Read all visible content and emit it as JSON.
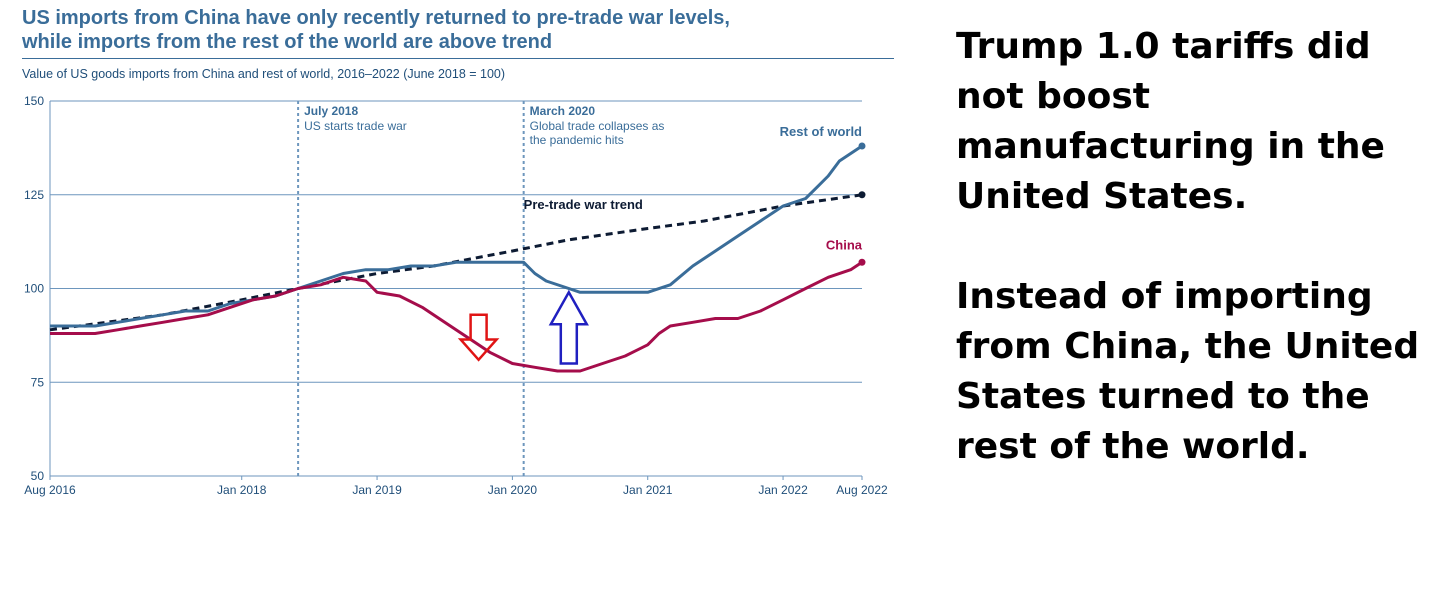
{
  "header": {
    "title_line1": "US imports from China have only recently returned to pre-trade war levels,",
    "title_line2": "while imports from the rest of the world are above trend",
    "subtitle": "Value of US goods imports from China and rest of world, 2016–2022 (June 2018 = 100)"
  },
  "side_text": {
    "para1": "Trump 1.0 tariffs did not boost manufacturing in the United States.",
    "para2": "Instead of importing from China, the United States turned to the rest of the world."
  },
  "colors": {
    "rest_of_world": "#3a6d99",
    "china": "#a50d4b",
    "trend": "#0d1b33",
    "grid": "#6d96bd",
    "axis_text": "#1f4e79",
    "arrow_down": "#e01414",
    "arrow_up": "#2020c0"
  },
  "chart_data": {
    "type": "line",
    "title": "US imports from China have only recently returned to pre-trade war levels, while imports from the rest of the world are above trend",
    "subtitle": "Value of US goods imports from China and rest of world, 2016–2022 (June 2018 = 100)",
    "xlabel": "",
    "ylabel": "",
    "x_range": [
      "2016-08",
      "2022-08"
    ],
    "ylim": [
      50,
      150
    ],
    "y_ticks": [
      50,
      75,
      100,
      125,
      150
    ],
    "x_ticks": [
      "Aug 2016",
      "Jan 2018",
      "Jan 2019",
      "Jan 2020",
      "Jan 2021",
      "Jan 2022",
      "Aug 2022"
    ],
    "grid": "horizontal",
    "series": [
      {
        "name": "Rest of world",
        "style": "solid",
        "points": [
          [
            "2016-08",
            90
          ],
          [
            "2016-10",
            90
          ],
          [
            "2016-12",
            90
          ],
          [
            "2017-02",
            91
          ],
          [
            "2017-04",
            92
          ],
          [
            "2017-06",
            93
          ],
          [
            "2017-08",
            94
          ],
          [
            "2017-10",
            94
          ],
          [
            "2017-12",
            96
          ],
          [
            "2018-02",
            97
          ],
          [
            "2018-04",
            98
          ],
          [
            "2018-06",
            100
          ],
          [
            "2018-08",
            102
          ],
          [
            "2018-10",
            104
          ],
          [
            "2018-12",
            105
          ],
          [
            "2019-02",
            105
          ],
          [
            "2019-04",
            106
          ],
          [
            "2019-06",
            106
          ],
          [
            "2019-08",
            107
          ],
          [
            "2019-10",
            107
          ],
          [
            "2019-12",
            107
          ],
          [
            "2020-02",
            107
          ],
          [
            "2020-03",
            104
          ],
          [
            "2020-04",
            102
          ],
          [
            "2020-06",
            100
          ],
          [
            "2020-07",
            99
          ],
          [
            "2020-09",
            99
          ],
          [
            "2020-11",
            99
          ],
          [
            "2021-01",
            99
          ],
          [
            "2021-03",
            101
          ],
          [
            "2021-05",
            106
          ],
          [
            "2021-07",
            110
          ],
          [
            "2021-09",
            114
          ],
          [
            "2021-11",
            118
          ],
          [
            "2022-01",
            122
          ],
          [
            "2022-03",
            124
          ],
          [
            "2022-04",
            127
          ],
          [
            "2022-05",
            130
          ],
          [
            "2022-06",
            134
          ],
          [
            "2022-07",
            136
          ],
          [
            "2022-08",
            138
          ]
        ]
      },
      {
        "name": "China",
        "style": "solid",
        "points": [
          [
            "2016-08",
            88
          ],
          [
            "2016-10",
            88
          ],
          [
            "2016-12",
            88
          ],
          [
            "2017-02",
            89
          ],
          [
            "2017-04",
            90
          ],
          [
            "2017-06",
            91
          ],
          [
            "2017-08",
            92
          ],
          [
            "2017-10",
            93
          ],
          [
            "2017-12",
            95
          ],
          [
            "2018-02",
            97
          ],
          [
            "2018-04",
            98
          ],
          [
            "2018-06",
            100
          ],
          [
            "2018-08",
            101
          ],
          [
            "2018-10",
            103
          ],
          [
            "2018-12",
            102
          ],
          [
            "2019-01",
            99
          ],
          [
            "2019-03",
            98
          ],
          [
            "2019-05",
            95
          ],
          [
            "2019-07",
            91
          ],
          [
            "2019-09",
            87
          ],
          [
            "2019-11",
            83
          ],
          [
            "2020-01",
            80
          ],
          [
            "2020-03",
            79
          ],
          [
            "2020-05",
            78
          ],
          [
            "2020-07",
            78
          ],
          [
            "2020-09",
            80
          ],
          [
            "2020-11",
            82
          ],
          [
            "2021-01",
            85
          ],
          [
            "2021-02",
            88
          ],
          [
            "2021-03",
            90
          ],
          [
            "2021-05",
            91
          ],
          [
            "2021-07",
            92
          ],
          [
            "2021-09",
            92
          ],
          [
            "2021-11",
            94
          ],
          [
            "2022-01",
            97
          ],
          [
            "2022-03",
            100
          ],
          [
            "2022-05",
            103
          ],
          [
            "2022-07",
            105
          ],
          [
            "2022-08",
            107
          ]
        ]
      },
      {
        "name": "Pre-trade war trend",
        "style": "dashed",
        "points": [
          [
            "2016-08",
            89
          ],
          [
            "2017-01",
            91
          ],
          [
            "2017-06",
            93
          ],
          [
            "2018-01",
            97
          ],
          [
            "2018-06",
            100
          ],
          [
            "2019-01",
            104
          ],
          [
            "2019-06",
            106
          ],
          [
            "2020-01",
            110
          ],
          [
            "2020-06",
            113
          ],
          [
            "2021-01",
            116
          ],
          [
            "2021-06",
            118
          ],
          [
            "2022-01",
            122
          ],
          [
            "2022-08",
            125
          ]
        ]
      }
    ],
    "annotations": [
      {
        "x": "2018-06",
        "line": "dotted",
        "bold": "July 2018",
        "text": [
          "US starts trade war"
        ]
      },
      {
        "x": "2020-02",
        "line": "dotted",
        "bold": "March 2020",
        "text": [
          "Global trade collapses as",
          "the pandemic hits"
        ]
      }
    ],
    "series_labels": {
      "rest_of_world": "Rest of world",
      "china": "China",
      "trend": "Pre-trade war trend"
    },
    "arrows": [
      {
        "direction": "down",
        "x": "2019-10",
        "y_from": 93,
        "y_to": 81
      },
      {
        "direction": "up",
        "x": "2020-06",
        "y_from": 80,
        "y_to": 99
      }
    ]
  }
}
